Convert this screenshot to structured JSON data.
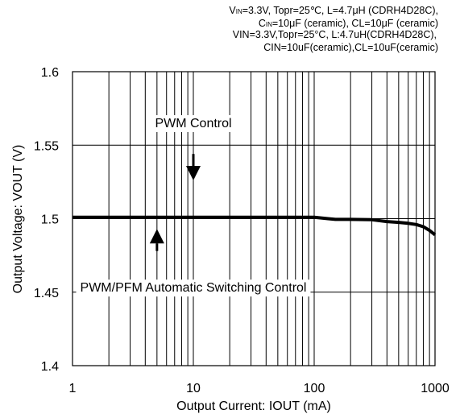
{
  "conditions": {
    "line1_pre": "V",
    "line1_sub": "IN",
    "line1_post": "=3.3V, Topr=25℃, L=4.7μH (CDRH4D28C),",
    "line2_pre": "C",
    "line2_sub": "IN",
    "line2_post": "=10μF (ceramic), CL=10μF (ceramic)",
    "line3": "VIN=3.3V,Topr=25°C, L:4.7uH(CDRH4D28C),",
    "line4": "CIN=10uF(ceramic),CL=10uF(ceramic)"
  },
  "chart_data": {
    "type": "line",
    "xlabel": "Output Current: IOUT (mA)",
    "ylabel": "Output Voltage: VOUT (V)",
    "xscale": "log",
    "xlim": [
      1,
      1000
    ],
    "ylim": [
      1.4,
      1.6
    ],
    "grid": true,
    "x_ticks": [
      "1",
      "10",
      "100",
      "1000"
    ],
    "y_ticks": [
      "1.4",
      "1.45",
      "1.5",
      "1.55",
      "1.6"
    ],
    "series": [
      {
        "x": [
          1,
          10,
          100,
          130,
          150,
          200,
          300,
          400,
          500,
          600,
          700,
          800,
          900,
          1000
        ],
        "y": [
          1.501,
          1.501,
          1.501,
          1.5,
          1.4995,
          1.4995,
          1.4993,
          1.498,
          1.4975,
          1.4968,
          1.496,
          1.4945,
          1.492,
          1.489
        ],
        "color": "#000000"
      }
    ],
    "annotations": [
      {
        "text": "PWM Control",
        "x": 10,
        "y": 1.5655,
        "arrow_from": [
          10,
          1.544
        ],
        "arrow_to": [
          10,
          1.526
        ]
      },
      {
        "text": "PWM/PFM Automatic Switching Control",
        "x": 10,
        "y": 1.4536,
        "arrow_from": [
          5,
          1.478
        ],
        "arrow_to": [
          5,
          1.493
        ]
      }
    ]
  }
}
